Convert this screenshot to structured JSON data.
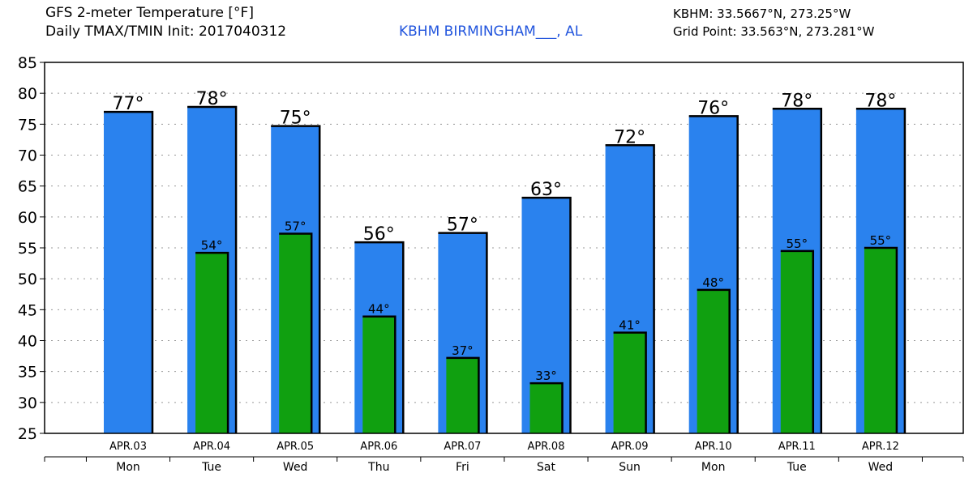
{
  "header": {
    "title_line1": "GFS 2-meter Temperature [°F]",
    "title_line2": "Daily TMAX/TMIN Init: 2017040312",
    "station": "KBHM BIRMINGHAM___, AL",
    "station_coord": "KBHM: 33.5667°N, 273.25°W",
    "grid_point": "Grid Point: 33.563°N, 273.281°W"
  },
  "colors": {
    "tmax": "#2a82ee",
    "tmin": "#10a010",
    "grid": "#999999"
  },
  "chart_data": {
    "type": "bar",
    "title": "GFS 2-meter Temperature [°F]",
    "categories": [
      "APR.03",
      "APR.04",
      "APR.05",
      "APR.06",
      "APR.07",
      "APR.08",
      "APR.09",
      "APR.10",
      "APR.11",
      "APR.12"
    ],
    "day_labels": [
      "Mon",
      "Tue",
      "Wed",
      "Thu",
      "Fri",
      "Sat",
      "Sun",
      "Mon",
      "Tue",
      "Wed"
    ],
    "series": [
      {
        "name": "TMAX",
        "values": [
          77,
          77.8,
          74.7,
          55.9,
          57.4,
          63.1,
          71.6,
          76.3,
          77.5,
          77.5
        ],
        "labels": [
          "77°",
          "78°",
          "75°",
          "56°",
          "57°",
          "63°",
          "72°",
          "76°",
          "78°",
          "78°"
        ]
      },
      {
        "name": "TMIN",
        "values": [
          null,
          54.2,
          57.3,
          43.9,
          37.2,
          33.1,
          41.3,
          48.2,
          54.5,
          55
        ],
        "labels": [
          "",
          "54°",
          "57°",
          "44°",
          "37°",
          "33°",
          "41°",
          "48°",
          "55°",
          "55°"
        ]
      }
    ],
    "ylim": [
      25,
      85
    ],
    "yticks": [
      25,
      30,
      35,
      40,
      45,
      50,
      55,
      60,
      65,
      70,
      75,
      80,
      85
    ],
    "grid": true
  }
}
